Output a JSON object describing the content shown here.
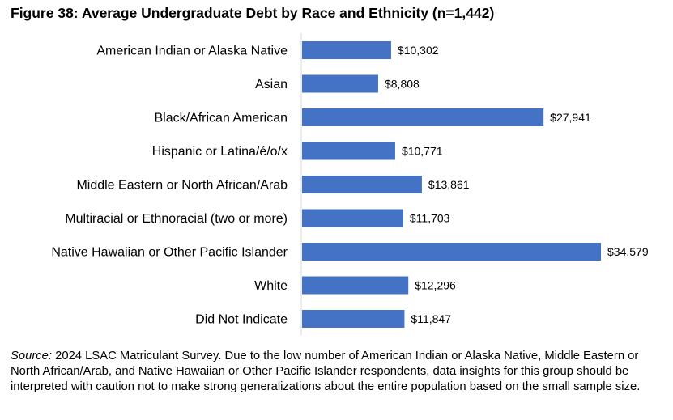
{
  "chart_data": {
    "type": "bar",
    "orientation": "horizontal",
    "title": "Figure 38: Average Undergraduate Debt by Race and Ethnicity (n=1,442)",
    "categories": [
      "American Indian or Alaska Native",
      "Asian",
      "Black/African American",
      "Hispanic or Latina/é/o/x",
      "Middle Eastern or North African/Arab",
      "Multiracial or Ethnoracial (two or more)",
      "Native Hawaiian or Other Pacific Islander",
      "White",
      "Did Not Indicate"
    ],
    "values": [
      10302,
      8808,
      27941,
      10771,
      13861,
      11703,
      34579,
      12296,
      11847
    ],
    "data_labels": [
      "$10,302",
      "$8,808",
      "$27,941",
      "$10,771",
      "$13,861",
      "$11,703",
      "$34,579",
      "$12,296",
      "$11,847"
    ],
    "xlim": [
      0,
      34579
    ],
    "grid": false,
    "legend": "none",
    "bar_color": "#4472C4",
    "axis_color": "#D9D9D9"
  },
  "source": {
    "label": "Source:",
    "text": " 2024 LSAC Matriculant Survey. Due to the low number of American Indian or Alaska Native, Middle Eastern or North African/Arab, and Native Hawaiian or Other Pacific Islander respondents, data insights for this group should be interpreted with caution not to make strong generalizations about the entire population based on the small sample size."
  }
}
